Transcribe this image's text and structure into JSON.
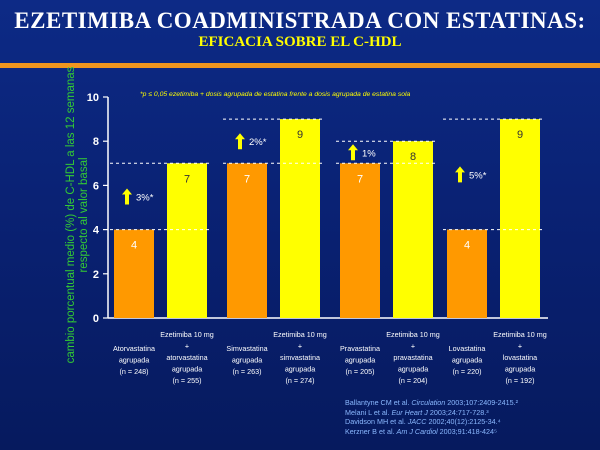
{
  "header": {
    "title": "EZETIMIBA COADMINISTRADA CON ESTATINAS:",
    "subtitle": "EFICACIA SOBRE EL C-HDL"
  },
  "colors": {
    "accent_rule": "#f0961e",
    "statin_bar": "#ff9900",
    "ezetimibe_bar": "#ffff00",
    "annotation_arrow": "#ffff00"
  },
  "chart_data": {
    "type": "bar",
    "ylabel": "cambio porcentual medio (%) de C-HDL a las 12 semanas respecto al valor basal",
    "ylim": [
      0,
      10
    ],
    "yticks": [
      0,
      2,
      4,
      6,
      8,
      10
    ],
    "grid": false,
    "footnote": "*p ≤ 0,05 ezetimiba + dosis agrupada de estatina frente a dosis agrupada de estatina sola",
    "bars": [
      {
        "label": [
          "Atorvastatina",
          "agrupada",
          "(n = 248)"
        ],
        "value": 4,
        "value_label": "4",
        "color": "#ff9900"
      },
      {
        "label": [
          "Ezetimiba 10 mg",
          "+",
          "atorvastatina",
          "agrupada",
          "(n = 255)"
        ],
        "value": 7,
        "value_label": "7",
        "color": "#ffff00"
      },
      {
        "label": [
          "Simvastatina",
          "agrupada",
          "(n = 263)"
        ],
        "value": 7,
        "value_label": "7",
        "color": "#ff9900"
      },
      {
        "label": [
          "Ezetimiba 10 mg",
          "+",
          "simvastatina",
          "agrupada",
          "(n = 274)"
        ],
        "value": 9,
        "value_label": "9",
        "color": "#ffff00"
      },
      {
        "label": [
          "Pravastatina",
          "agrupada",
          "(n = 205)"
        ],
        "value": 7,
        "value_label": "7",
        "color": "#ff9900"
      },
      {
        "label": [
          "Ezetimiba 10 mg",
          "+",
          "pravastatina",
          "agrupada",
          "(n = 204)"
        ],
        "value": 8,
        "value_label": "8",
        "color": "#ffff00"
      },
      {
        "label": [
          "Lovastatina",
          "agrupada",
          "(n = 220)"
        ],
        "value": 4,
        "value_label": "4",
        "color": "#ff9900"
      },
      {
        "label": [
          "Ezetimiba 10 mg",
          "+",
          "lovastatina",
          "agrupada",
          "(n = 192)"
        ],
        "value": 9,
        "value_label": "9",
        "color": "#ffff00"
      }
    ],
    "annotations": [
      {
        "pair": 0,
        "text": "3%*",
        "from": 4,
        "to": 7
      },
      {
        "pair": 1,
        "text": "2%*",
        "from": 7,
        "to": 9
      },
      {
        "pair": 2,
        "text": "1%",
        "from": 7,
        "to": 8
      },
      {
        "pair": 3,
        "text": "5%*",
        "from": 4,
        "to": 9
      }
    ]
  },
  "references": [
    {
      "authors": "Ballantyne CM et al.",
      "journal": "Circulation",
      "rest": " 2003;107:2409-2415.²"
    },
    {
      "authors": "Melani L et al.",
      "journal": "Eur Heart J",
      "rest": " 2003;24:717-728.³"
    },
    {
      "authors": "Davidson MH et al.",
      "journal": "JACC",
      "rest": " 2002;40(12):2125-34.⁴"
    },
    {
      "authors": "Kerzner B et al.",
      "journal": "Am J Cardiol",
      "rest": " 2003;91:418-424⁵"
    }
  ]
}
